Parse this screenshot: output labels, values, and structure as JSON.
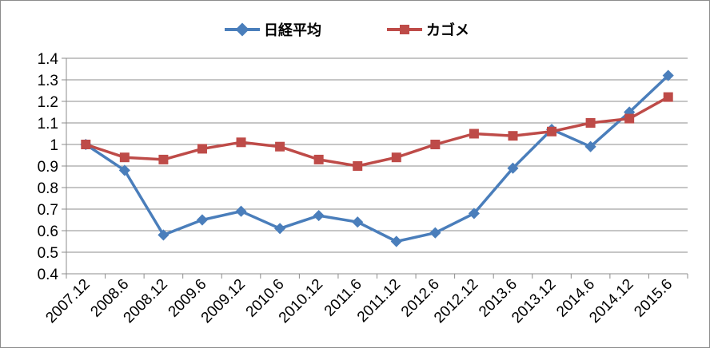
{
  "chart_data": {
    "type": "line",
    "title": "",
    "xlabel": "",
    "ylabel": "",
    "categories": [
      "2007.12",
      "2008.6",
      "2008.12",
      "2009.6",
      "2009.12",
      "2010.6",
      "2010.12",
      "2011.6",
      "2011.12",
      "2012.6",
      "2012.12",
      "2013.6",
      "2013.12",
      "2014.6",
      "2014.12",
      "2015.6"
    ],
    "ylim": [
      0.4,
      1.4
    ],
    "yticks": [
      "1.4",
      "1.3",
      "1.2",
      "1.1",
      "1",
      "0.9",
      "0.8",
      "0.7",
      "0.6",
      "0.5",
      "0.4"
    ],
    "grid": true,
    "legend_position": "top",
    "series": [
      {
        "name": "日経平均",
        "color": "#4a7ebb",
        "marker": "diamond",
        "values": [
          1.0,
          0.88,
          0.58,
          0.65,
          0.69,
          0.61,
          0.67,
          0.64,
          0.55,
          0.59,
          0.68,
          0.89,
          1.07,
          0.99,
          1.15,
          1.32
        ]
      },
      {
        "name": "カゴメ",
        "color": "#be4b48",
        "marker": "square",
        "values": [
          1.0,
          0.94,
          0.93,
          0.98,
          1.01,
          0.99,
          0.93,
          0.9,
          0.94,
          1.0,
          1.05,
          1.04,
          1.06,
          1.1,
          1.12,
          1.22
        ]
      }
    ]
  }
}
